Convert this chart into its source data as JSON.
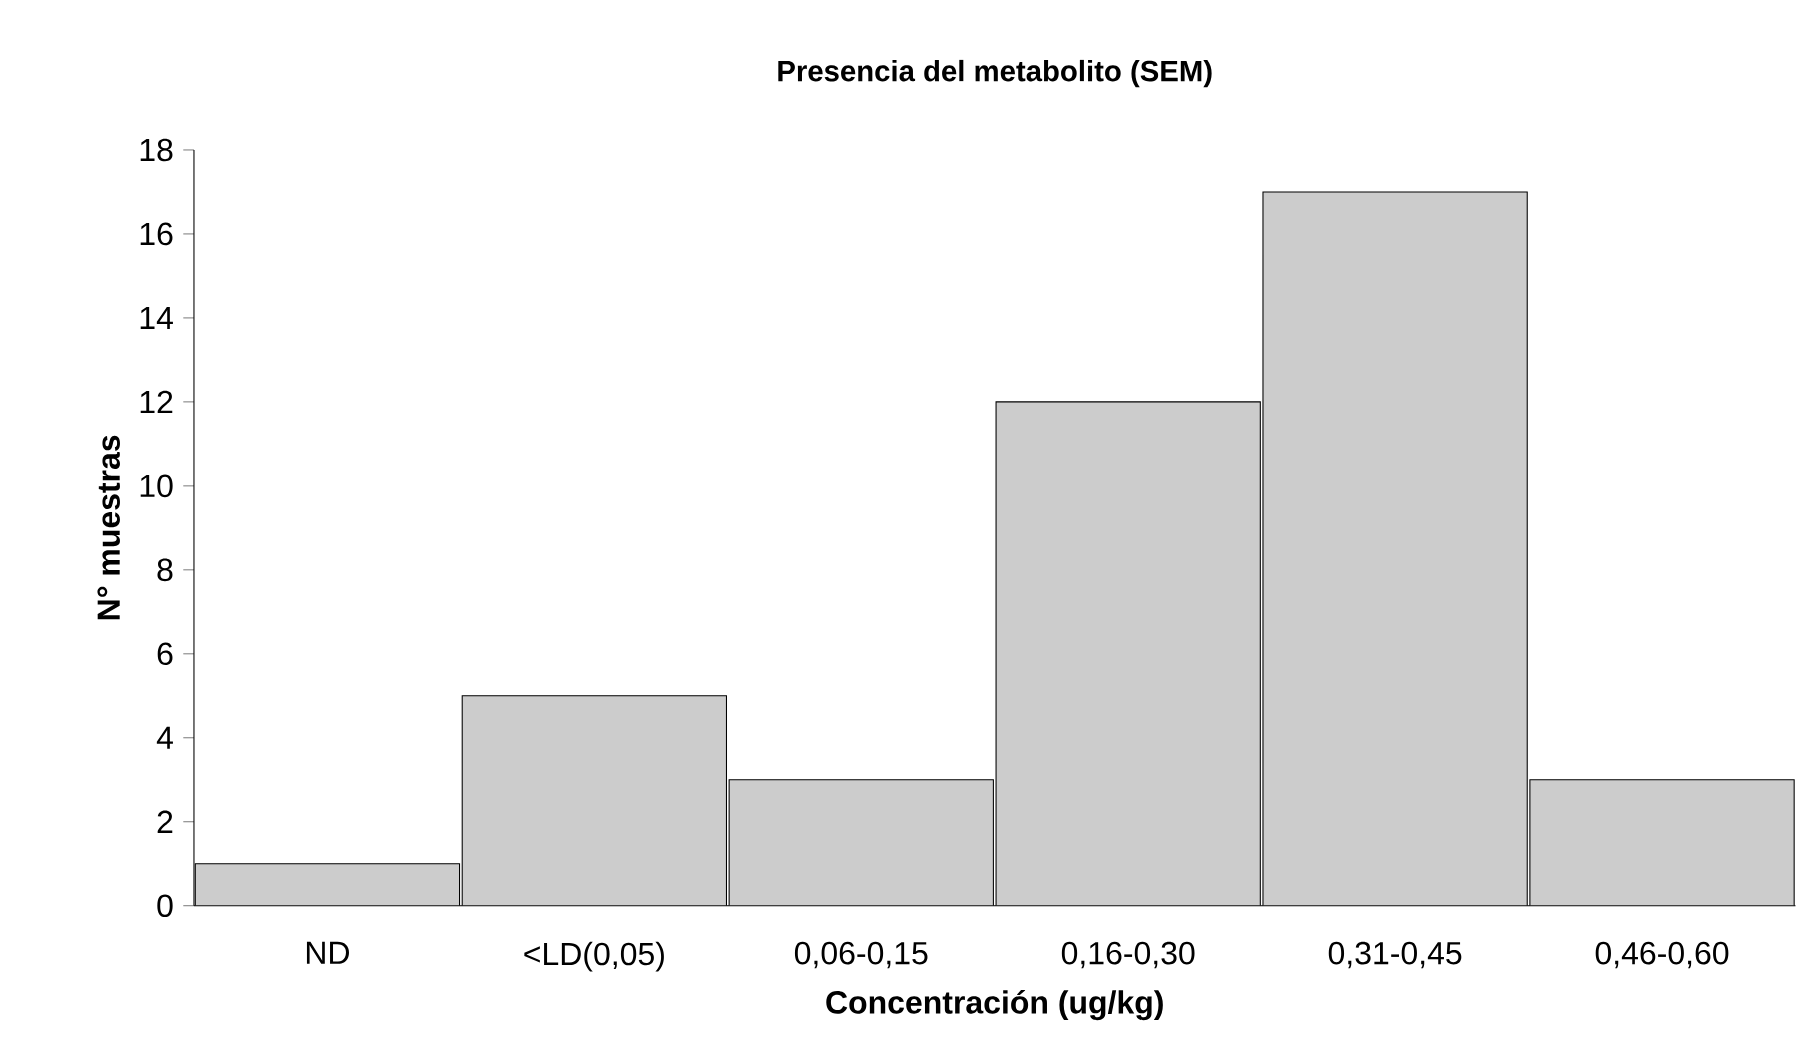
{
  "chart_data": {
    "type": "bar",
    "title": "Presencia del metabolito (SEM)",
    "xlabel": "Concentración (ug/kg)",
    "ylabel": "N° muestras",
    "categories": [
      "ND",
      "<LD(0,05)",
      "0,06-0,15",
      "0,16-0,30",
      "0,31-0,45",
      "0,46-0,60"
    ],
    "values": [
      1,
      5,
      3,
      12,
      17,
      3
    ],
    "color": "#cccccc",
    "ylim": [
      0,
      18
    ],
    "yticks": [
      0,
      2,
      4,
      6,
      8,
      10,
      12,
      14,
      16,
      18
    ]
  }
}
